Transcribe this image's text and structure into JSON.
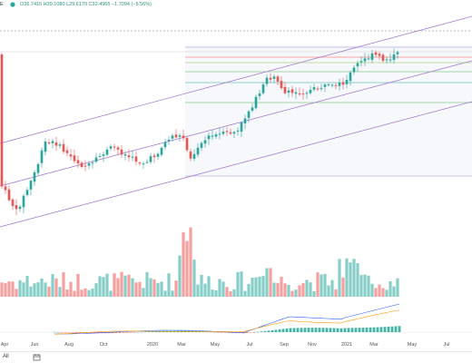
{
  "header": {
    "symbol": "E",
    "ohlc": "O36.7415 H39.1080 L29.6179 C32.4965 −1.7094 (−5.56%)",
    "up_color": "#26a69a",
    "down_color": "#ef5350"
  },
  "footer": {
    "range_label": "All"
  },
  "chart_data": {
    "type": "candlestick",
    "x_axis_labels": [
      "Apr",
      "Jun",
      "Aug",
      "Oct",
      "2020",
      "Mar",
      "May",
      "Jul",
      "Sep",
      "Nov",
      "2021",
      "Mar",
      "May",
      "Jul"
    ],
    "grid": false,
    "indicators": [
      "volume",
      "MACD"
    ],
    "last_close": 32.4965
  }
}
